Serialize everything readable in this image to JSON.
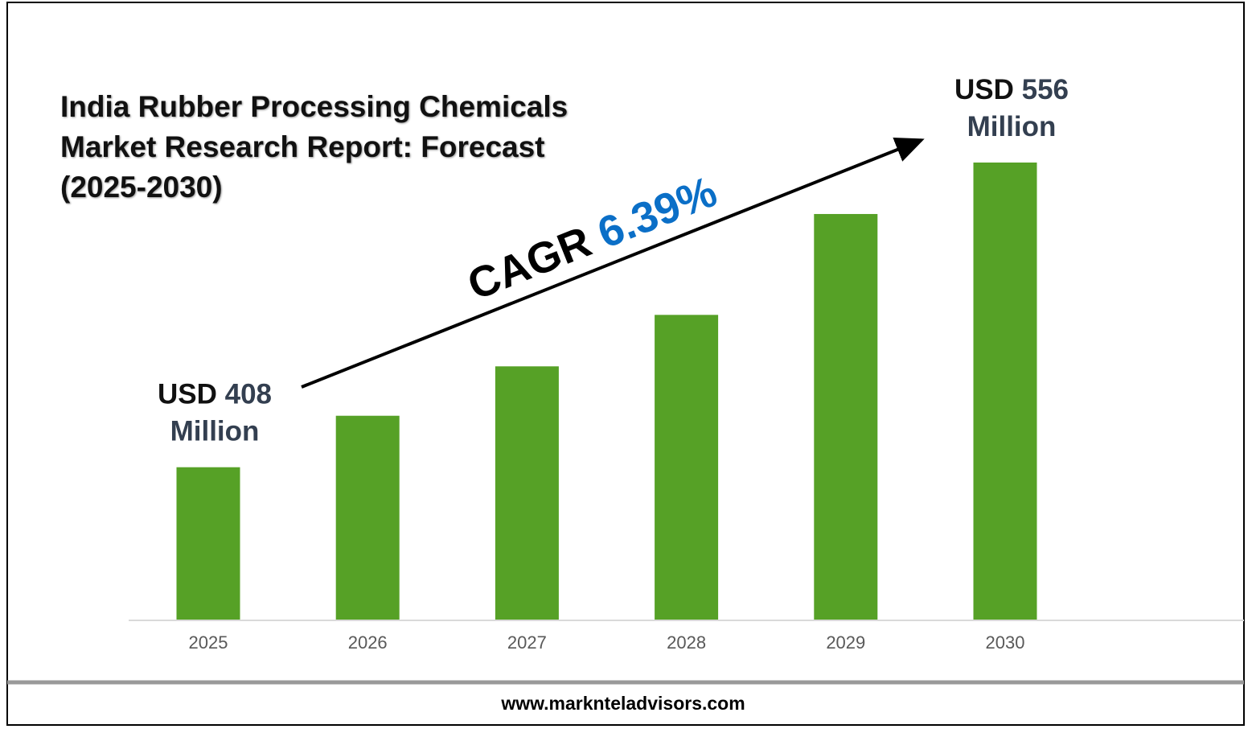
{
  "chart_data": {
    "type": "bar",
    "title": "India Rubber Processing Chemicals Market Research Report: Forecast (2025-2030)",
    "categories": [
      "2025",
      "2026",
      "2027",
      "2028",
      "2029",
      "2030"
    ],
    "values": [
      408,
      433,
      457,
      482,
      531,
      556
    ],
    "value_labels": [
      "USD 408 Million",
      null,
      null,
      null,
      null,
      "USD 556 Million"
    ],
    "color": "#56a126",
    "ylim": [
      334,
      556
    ],
    "annotation": {
      "label": "CAGR",
      "value": "6.39%"
    },
    "footer": "www.marknteladvisors.com"
  }
}
